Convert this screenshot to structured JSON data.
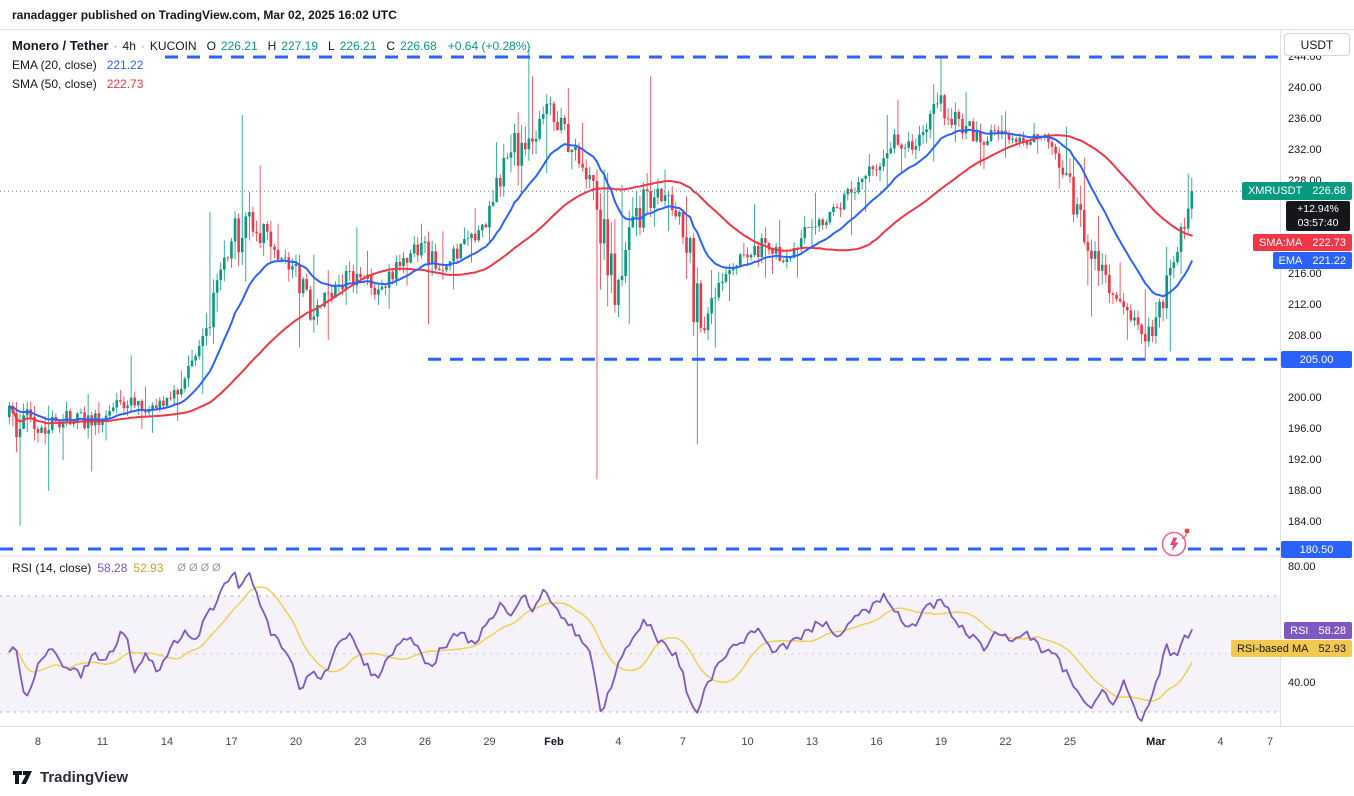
{
  "header": {
    "attribution": "ranadagger published on TradingView.com, Mar 02, 2025 16:02 UTC"
  },
  "legend": {
    "symbol": "Monero / Tether",
    "sep": "·",
    "interval": "4h",
    "exchange": "KUCOIN",
    "o_label": "O",
    "open": "226.21",
    "h_label": "H",
    "high": "227.19",
    "l_label": "L",
    "low": "226.21",
    "c_label": "C",
    "close": "226.68",
    "change": "+0.64 (+0.28%)",
    "ema_label": "EMA (20, close)",
    "ema_value": "221.22",
    "sma_label": "SMA (50, close)",
    "sma_value": "222.73",
    "rsi_label": "RSI (14, close)",
    "rsi_value": "58.28",
    "rsi_ma_value": "52.93"
  },
  "axis": {
    "currency": "USDT"
  },
  "badges": {
    "symbol": "XMRUSDT",
    "symbol_price": "226.68",
    "change_pct": "+12.94%",
    "countdown": "03:57:40",
    "sma_label": "SMA:MA",
    "sma_value": "222.73",
    "ema_label": "EMA",
    "ema_value": "221.22",
    "level_205": "205.00",
    "level_180": "180.50",
    "rsi_label": "RSI",
    "rsi_value": "58.28",
    "rsi_ma_label": "RSI-based MA",
    "rsi_ma_value": "52.93"
  },
  "footer": {
    "brand": "TradingView"
  },
  "chart_data": {
    "type": "candlestick",
    "title": "Monero / Tether · 4h · KUCOIN",
    "interval": "4h",
    "panes": [
      "price",
      "rsi"
    ],
    "legend_position": "top-left",
    "grid": false,
    "current_price": 226.68,
    "price_axis_range": [
      180.5,
      246
    ],
    "levels": [
      244.0,
      205.0,
      180.5
    ],
    "price_ticks": [
      "244.00",
      "240.00",
      "236.00",
      "232.00",
      "228.00",
      "224.00",
      "220.00",
      "216.00",
      "212.00",
      "208.00",
      "200.00",
      "196.00",
      "192.00",
      "188.00",
      "184.00"
    ],
    "rsi_ticks": [
      "80.00",
      "40.00"
    ],
    "rsi_guides": [
      70,
      50,
      30
    ],
    "rsi_current": 58.28,
    "rsi_ma_current": 52.93,
    "ema_period": 20,
    "sma_period": 50,
    "rsi_period": 14,
    "colors": {
      "up": "#089981",
      "down": "#F23645",
      "ema": "#2962FF",
      "sma": "#F23645",
      "level": "#2962FF",
      "rsi": "#7E57C2",
      "rsi_ma": "#EFCE4A",
      "rsi_band": "rgba(126,87,194,0.08)",
      "rsi_ma_badge": "#F2C94C"
    },
    "days": [
      [
        "Jan 7",
        197.5,
        199.5,
        183.5,
        196.0,
        8
      ],
      [
        "Jan 8",
        196.0,
        199.0,
        188.0,
        197.0,
        6
      ],
      [
        "Jan 9",
        197.0,
        199.5,
        192.0,
        198.0,
        6
      ],
      [
        "Jan 10",
        198.0,
        200.5,
        190.5,
        196.5,
        6
      ],
      [
        "Jan 11",
        196.5,
        201.0,
        194.5,
        199.5,
        6
      ],
      [
        "Jan 12",
        199.5,
        205.5,
        196.0,
        198.5,
        6
      ],
      [
        "Jan 13",
        198.5,
        201.5,
        195.5,
        199.0,
        6
      ],
      [
        "Jan 14",
        199.0,
        203.5,
        197.0,
        202.5,
        6
      ],
      [
        "Jan 15",
        202.5,
        211.0,
        200.5,
        209.0,
        6
      ],
      [
        "Jan 16",
        209.0,
        224.0,
        207.0,
        218.0,
        6
      ],
      [
        "Jan 17",
        218.0,
        236.5,
        215.0,
        224.0,
        6
      ],
      [
        "Jan 18",
        224.0,
        230.0,
        217.5,
        219.5,
        6
      ],
      [
        "Jan 19",
        219.5,
        222.5,
        215.0,
        217.0,
        6
      ],
      [
        "Jan 20",
        217.0,
        218.5,
        206.5,
        210.5,
        6
      ],
      [
        "Jan 21",
        210.5,
        216.5,
        207.5,
        214.5,
        6
      ],
      [
        "Jan 22",
        214.5,
        222.0,
        212.0,
        216.0,
        6
      ],
      [
        "Jan 23",
        216.0,
        219.0,
        212.0,
        214.0,
        6
      ],
      [
        "Jan 24",
        214.0,
        218.5,
        211.5,
        217.0,
        6
      ],
      [
        "Jan 25",
        217.0,
        222.5,
        214.5,
        220.0,
        6
      ],
      [
        "Jan 26",
        220.0,
        221.5,
        209.5,
        216.5,
        6
      ],
      [
        "Jan 27",
        216.5,
        222.0,
        214.0,
        220.5,
        6
      ],
      [
        "Jan 28",
        220.5,
        224.5,
        217.5,
        222.0,
        6
      ],
      [
        "Jan 29",
        222.0,
        233.0,
        220.0,
        231.0,
        6
      ],
      [
        "Jan 30",
        231.0,
        245.5,
        226.5,
        233.5,
        6
      ],
      [
        "Jan 31",
        233.5,
        241.5,
        229.0,
        238.0,
        6
      ],
      [
        "Feb 1",
        238.0,
        240.0,
        229.5,
        232.0,
        6
      ],
      [
        "Feb 2",
        232.0,
        235.5,
        225.5,
        228.0,
        6
      ],
      [
        "Feb 3",
        228.0,
        229.5,
        189.5,
        212.0,
        6
      ],
      [
        "Feb 4",
        212.0,
        227.5,
        209.5,
        224.5,
        6
      ],
      [
        "Feb 5",
        224.5,
        241.5,
        221.0,
        227.0,
        6
      ],
      [
        "Feb 6",
        227.0,
        229.5,
        221.5,
        224.0,
        6
      ],
      [
        "Feb 7",
        224.0,
        226.0,
        194.0,
        209.0,
        6
      ],
      [
        "Feb 8",
        209.0,
        216.5,
        206.5,
        215.0,
        6
      ],
      [
        "Feb 9",
        215.0,
        220.0,
        212.5,
        218.5,
        6
      ],
      [
        "Feb 10",
        218.5,
        225.0,
        215.5,
        220.0,
        6
      ],
      [
        "Feb 11",
        220.0,
        223.0,
        216.0,
        218.0,
        6
      ],
      [
        "Feb 12",
        218.0,
        223.5,
        215.5,
        222.0,
        6
      ],
      [
        "Feb 13",
        222.0,
        226.5,
        219.5,
        224.0,
        6
      ],
      [
        "Feb 14",
        224.0,
        228.0,
        221.0,
        226.5,
        6
      ],
      [
        "Feb 15",
        226.5,
        231.5,
        224.0,
        229.5,
        6
      ],
      [
        "Feb 16",
        229.5,
        236.5,
        227.0,
        234.0,
        6
      ],
      [
        "Feb 17",
        234.0,
        238.5,
        229.0,
        232.5,
        6
      ],
      [
        "Feb 18",
        232.5,
        240.5,
        230.5,
        238.0,
        6
      ],
      [
        "Feb 19",
        238.0,
        244.0,
        233.0,
        236.0,
        6
      ],
      [
        "Feb 20",
        236.0,
        239.5,
        230.0,
        233.0,
        6
      ],
      [
        "Feb 21",
        233.0,
        236.5,
        229.5,
        234.5,
        6
      ],
      [
        "Feb 22",
        234.5,
        237.0,
        231.0,
        233.0,
        6
      ],
      [
        "Feb 23",
        233.0,
        235.5,
        231.5,
        234.0,
        6
      ],
      [
        "Feb 24",
        234.0,
        235.0,
        227.0,
        229.0,
        6
      ],
      [
        "Feb 25",
        229.0,
        231.0,
        214.5,
        219.0,
        6
      ],
      [
        "Feb 26",
        219.0,
        223.5,
        210.5,
        213.5,
        6
      ],
      [
        "Feb 27",
        213.5,
        217.5,
        207.5,
        210.0,
        6
      ],
      [
        "Feb 28",
        210.0,
        214.0,
        204.8,
        208.0,
        6
      ],
      [
        "Mar 1",
        208.0,
        219.5,
        206.0,
        217.5,
        6
      ],
      [
        "Mar 2",
        217.5,
        229.0,
        216.0,
        226.68,
        5
      ]
    ],
    "rsi_waypoints": [
      [
        0,
        52
      ],
      [
        0.4,
        34
      ],
      [
        1,
        46
      ],
      [
        1.6,
        52
      ],
      [
        2,
        48
      ],
      [
        3,
        42
      ],
      [
        3.5,
        50
      ],
      [
        4,
        47
      ],
      [
        5,
        58
      ],
      [
        5.5,
        45
      ],
      [
        6,
        50
      ],
      [
        6.6,
        43
      ],
      [
        7.2,
        52
      ],
      [
        7.8,
        58
      ],
      [
        8.3,
        55
      ],
      [
        8.8,
        62
      ],
      [
        9.5,
        71
      ],
      [
        10.1,
        78
      ],
      [
        10.4,
        73
      ],
      [
        10.8,
        80
      ],
      [
        11.3,
        67
      ],
      [
        11.8,
        58
      ],
      [
        12.5,
        52
      ],
      [
        13.2,
        38
      ],
      [
        13.7,
        44
      ],
      [
        14.2,
        40
      ],
      [
        14.8,
        52
      ],
      [
        15.5,
        57
      ],
      [
        16.2,
        46
      ],
      [
        16.8,
        42
      ],
      [
        17.5,
        51
      ],
      [
        18.3,
        56
      ],
      [
        19.2,
        45
      ],
      [
        19.8,
        52
      ],
      [
        20.5,
        57
      ],
      [
        21.3,
        54
      ],
      [
        22,
        62
      ],
      [
        22.6,
        67
      ],
      [
        23.1,
        64
      ],
      [
        23.6,
        70
      ],
      [
        24.1,
        65
      ],
      [
        24.6,
        72
      ],
      [
        25.1,
        66
      ],
      [
        25.7,
        60
      ],
      [
        26.3,
        55
      ],
      [
        26.8,
        48
      ],
      [
        27.2,
        27
      ],
      [
        27.6,
        38
      ],
      [
        28.1,
        48
      ],
      [
        28.7,
        55
      ],
      [
        29.2,
        62
      ],
      [
        29.8,
        55
      ],
      [
        30.3,
        52
      ],
      [
        30.8,
        48
      ],
      [
        31.3,
        34
      ],
      [
        31.7,
        31
      ],
      [
        32.3,
        42
      ],
      [
        33,
        50
      ],
      [
        33.8,
        55
      ],
      [
        34.5,
        58
      ],
      [
        35.2,
        50
      ],
      [
        36,
        54
      ],
      [
        36.8,
        58
      ],
      [
        37.5,
        61
      ],
      [
        38.2,
        57
      ],
      [
        39,
        62
      ],
      [
        39.8,
        66
      ],
      [
        40.4,
        70
      ],
      [
        41,
        63
      ],
      [
        41.6,
        58
      ],
      [
        42.2,
        66
      ],
      [
        43,
        68
      ],
      [
        43.6,
        62
      ],
      [
        44.2,
        57
      ],
      [
        45,
        52
      ],
      [
        45.6,
        58
      ],
      [
        46.3,
        54
      ],
      [
        47,
        57
      ],
      [
        47.6,
        52
      ],
      [
        48.3,
        49
      ],
      [
        49,
        42
      ],
      [
        49.5,
        34
      ],
      [
        50,
        30
      ],
      [
        50.5,
        39
      ],
      [
        51,
        33
      ],
      [
        51.5,
        40
      ],
      [
        52,
        31
      ],
      [
        52.4,
        27
      ],
      [
        53,
        40
      ],
      [
        53.5,
        52
      ],
      [
        54,
        49
      ],
      [
        54.4,
        56
      ],
      [
        54.8,
        58.3
      ]
    ],
    "time_ticks": [
      [
        1,
        "8",
        0
      ],
      [
        4,
        "11",
        0
      ],
      [
        7,
        "14",
        0
      ],
      [
        10,
        "17",
        0
      ],
      [
        13,
        "20",
        0
      ],
      [
        16,
        "23",
        0
      ],
      [
        19,
        "26",
        0
      ],
      [
        22,
        "29",
        0
      ],
      [
        25,
        "Feb",
        1
      ],
      [
        28,
        "4",
        0
      ],
      [
        31,
        "7",
        0
      ],
      [
        34,
        "10",
        0
      ],
      [
        37,
        "13",
        0
      ],
      [
        40,
        "16",
        0
      ],
      [
        43,
        "19",
        0
      ],
      [
        46,
        "22",
        0
      ],
      [
        49,
        "25",
        0
      ],
      [
        53,
        "Mar",
        1
      ],
      [
        56,
        "4",
        0
      ],
      [
        59,
        "7",
        0
      ]
    ]
  }
}
